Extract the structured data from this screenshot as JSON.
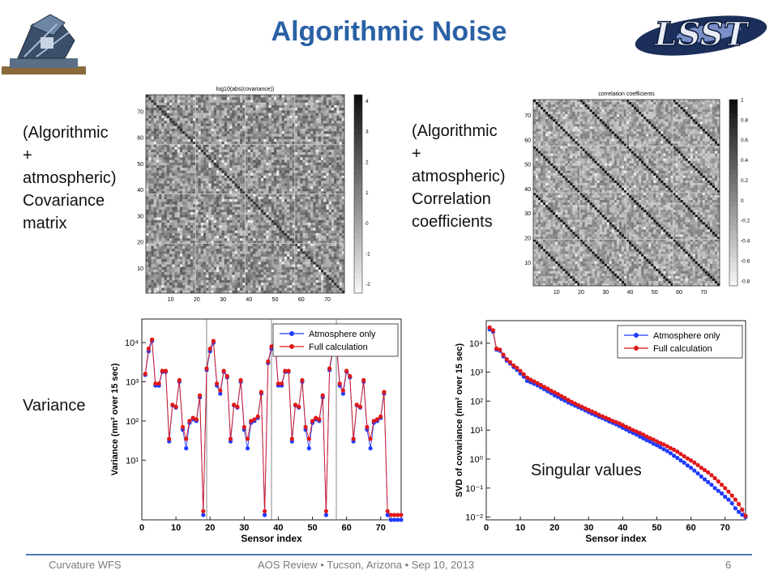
{
  "slide": {
    "title": "Algorithmic Noise",
    "logo_text": "LSST",
    "labels": {
      "covariance": "(Algorithmic\n+\natmospheric)\nCovariance\nmatrix",
      "correlation": "(Algorithmic\n+\natmospheric)\nCorrelation\ncoefficients",
      "variance": "Variance",
      "singular": "Singular values"
    },
    "footer": {
      "left": "Curvature WFS",
      "center": "AOS Review • Tucson, Arizona • Sep 10, 2013",
      "page": "6"
    }
  },
  "chart_data": [
    {
      "type": "heatmap",
      "title": "log10(abs(covariance))",
      "x_ticks": [
        "10",
        "20",
        "30",
        "40",
        "50",
        "60",
        "70"
      ],
      "y_ticks": [
        "10",
        "20",
        "30",
        "40",
        "50",
        "60",
        "70"
      ],
      "colorbar_ticks": [
        "4",
        "3",
        "2",
        "1",
        "0",
        "-1",
        "-2"
      ],
      "range": [
        1,
        76
      ],
      "colorbar_range": [
        -2.3,
        4.2
      ]
    },
    {
      "type": "heatmap",
      "title": "correlation coefficients",
      "x_ticks": [
        "10",
        "20",
        "30",
        "40",
        "50",
        "60",
        "70"
      ],
      "y_ticks": [
        "10",
        "20",
        "30",
        "40",
        "50",
        "60",
        "70"
      ],
      "colorbar_ticks": [
        "1",
        "0.8",
        "0.6",
        "0.4",
        "0.2",
        "0",
        "-0.2",
        "-0.4",
        "-0.6",
        "-0.8"
      ],
      "range": [
        1,
        76
      ],
      "colorbar_range": [
        -0.85,
        1
      ]
    },
    {
      "type": "line",
      "xlabel": "Sensor index",
      "ylabel": "Variance (nm² over 15 sec)",
      "x_ticks": [
        "0",
        "10",
        "20",
        "30",
        "40",
        "50",
        "60",
        "70"
      ],
      "y_ticks": [
        "10⁴",
        "10³",
        "10²",
        "10¹"
      ],
      "xlim": [
        0,
        76
      ],
      "ylim": [
        0.3,
        40000
      ],
      "log_y": true,
      "grid": false,
      "legend_position": "top-right",
      "series": [
        {
          "name": "Atmosphere only",
          "color": "#1f3cff",
          "x": [
            1,
            2,
            3,
            4,
            5,
            6,
            7,
            8,
            9,
            10,
            11,
            12,
            13,
            14,
            15,
            16,
            17,
            18,
            19,
            20,
            21,
            22,
            23,
            24,
            25,
            26,
            27,
            28,
            29,
            30,
            31,
            32,
            33,
            34,
            35,
            36,
            37,
            38,
            39,
            40,
            41,
            42,
            43,
            44,
            45,
            46,
            47,
            48,
            49,
            50,
            51,
            52,
            53,
            54,
            55,
            56,
            57,
            58,
            59,
            60,
            61,
            62,
            63,
            64,
            65,
            66,
            67,
            68,
            69,
            70,
            71,
            72,
            73,
            74,
            75,
            76
          ],
          "y": [
            1500,
            6000,
            11000,
            800,
            800,
            1800,
            1800,
            30,
            250,
            220,
            1000,
            60,
            20,
            90,
            110,
            100,
            400,
            0.4,
            2000,
            6000,
            10000,
            800,
            500,
            1800,
            1300,
            30,
            250,
            220,
            1000,
            60,
            20,
            90,
            100,
            120,
            500,
            0.4,
            3000,
            7000,
            10000,
            800,
            800,
            1800,
            1800,
            30,
            250,
            220,
            1000,
            60,
            20,
            90,
            110,
            100,
            400,
            0.4,
            2000,
            6000,
            10000,
            800,
            500,
            1800,
            1300,
            30,
            250,
            220,
            1000,
            60,
            20,
            90,
            100,
            120,
            500,
            0.4,
            0.3,
            0.3,
            0.3,
            0.3
          ]
        },
        {
          "name": "Full calculation",
          "color": "#e01818",
          "x": [
            1,
            2,
            3,
            4,
            5,
            6,
            7,
            8,
            9,
            10,
            11,
            12,
            13,
            14,
            15,
            16,
            17,
            18,
            19,
            20,
            21,
            22,
            23,
            24,
            25,
            26,
            27,
            28,
            29,
            30,
            31,
            32,
            33,
            34,
            35,
            36,
            37,
            38,
            39,
            40,
            41,
            42,
            43,
            44,
            45,
            46,
            47,
            48,
            49,
            50,
            51,
            52,
            53,
            54,
            55,
            56,
            57,
            58,
            59,
            60,
            61,
            62,
            63,
            64,
            65,
            66,
            67,
            68,
            69,
            70,
            71,
            72,
            73,
            74,
            75,
            76
          ],
          "y": [
            1600,
            7000,
            12000,
            900,
            900,
            1900,
            1900,
            35,
            260,
            230,
            1100,
            70,
            35,
            100,
            120,
            110,
            450,
            0.5,
            2200,
            7000,
            11000,
            900,
            600,
            1900,
            1400,
            35,
            260,
            230,
            1100,
            70,
            35,
            100,
            110,
            130,
            550,
            0.5,
            3300,
            8000,
            11000,
            900,
            900,
            1900,
            1900,
            35,
            260,
            230,
            1100,
            70,
            35,
            100,
            120,
            110,
            450,
            0.5,
            2200,
            7000,
            11000,
            900,
            600,
            1900,
            1400,
            35,
            260,
            230,
            1100,
            70,
            35,
            100,
            110,
            130,
            550,
            0.5,
            0.4,
            0.4,
            0.4,
            0.4
          ]
        }
      ]
    },
    {
      "type": "scatter",
      "xlabel": "Sensor index",
      "ylabel": "SVD of covariance (nm² over 15 sec)",
      "x_ticks": [
        "0",
        "10",
        "20",
        "30",
        "40",
        "50",
        "60",
        "70"
      ],
      "y_ticks": [
        "10⁴",
        "10³",
        "10²",
        "10¹",
        "10⁰",
        "10⁻¹",
        "10⁻²"
      ],
      "xlim": [
        0,
        76
      ],
      "ylim": [
        0.008,
        60000
      ],
      "log_y": true,
      "grid": false,
      "legend_position": "top-right",
      "series": [
        {
          "name": "Atmosphere only",
          "color": "#1f3cff",
          "x": [
            1,
            2,
            3,
            4,
            5,
            6,
            7,
            8,
            9,
            10,
            11,
            12,
            13,
            14,
            15,
            16,
            17,
            18,
            19,
            20,
            21,
            22,
            23,
            24,
            25,
            26,
            27,
            28,
            29,
            30,
            31,
            32,
            33,
            34,
            35,
            36,
            37,
            38,
            39,
            40,
            41,
            42,
            43,
            44,
            45,
            46,
            47,
            48,
            49,
            50,
            51,
            52,
            53,
            54,
            55,
            56,
            57,
            58,
            59,
            60,
            61,
            62,
            63,
            64,
            65,
            66,
            67,
            68,
            69,
            70,
            71,
            72,
            73,
            74,
            75,
            76
          ],
          "y": [
            30000,
            25000,
            6000,
            5500,
            3500,
            2500,
            2000,
            1500,
            1200,
            900,
            700,
            500,
            450,
            400,
            350,
            300,
            260,
            220,
            190,
            160,
            140,
            120,
            105,
            90,
            80,
            70,
            62,
            55,
            48,
            42,
            37,
            33,
            29,
            26,
            23,
            20,
            18,
            16,
            14,
            12,
            10.5,
            9,
            8,
            7,
            6,
            5.2,
            4.5,
            4,
            3.4,
            3,
            2.6,
            2.2,
            1.9,
            1.6,
            1.3,
            1.1,
            0.9,
            0.75,
            0.6,
            0.5,
            0.4,
            0.32,
            0.25,
            0.2,
            0.16,
            0.13,
            0.1,
            0.08,
            0.065,
            0.05,
            0.04,
            0.03,
            0.02,
            0.015,
            0.012,
            0.01
          ]
        },
        {
          "name": "Full calculation",
          "color": "#e01818",
          "x": [
            1,
            2,
            3,
            4,
            5,
            6,
            7,
            8,
            9,
            10,
            11,
            12,
            13,
            14,
            15,
            16,
            17,
            18,
            19,
            20,
            21,
            22,
            23,
            24,
            25,
            26,
            27,
            28,
            29,
            30,
            31,
            32,
            33,
            34,
            35,
            36,
            37,
            38,
            39,
            40,
            41,
            42,
            43,
            44,
            45,
            46,
            47,
            48,
            49,
            50,
            51,
            52,
            53,
            54,
            55,
            56,
            57,
            58,
            59,
            60,
            61,
            62,
            63,
            64,
            65,
            66,
            67,
            68,
            69,
            70,
            71,
            72,
            73,
            74,
            75,
            76
          ],
          "y": [
            35000,
            28000,
            6500,
            6000,
            4000,
            2800,
            2200,
            1700,
            1400,
            1100,
            850,
            650,
            550,
            480,
            420,
            360,
            310,
            270,
            230,
            200,
            175,
            150,
            130,
            110,
            95,
            83,
            73,
            64,
            56,
            50,
            44,
            39,
            34,
            30,
            27,
            24,
            21,
            19,
            17,
            15,
            13,
            11.5,
            10,
            9,
            8,
            7,
            6,
            5.3,
            4.7,
            4.1,
            3.6,
            3.2,
            2.8,
            2.4,
            2.1,
            1.8,
            1.5,
            1.25,
            1.05,
            0.9,
            0.75,
            0.62,
            0.5,
            0.42,
            0.35,
            0.28,
            0.22,
            0.17,
            0.13,
            0.1,
            0.075,
            0.055,
            0.04,
            0.028,
            0.018,
            0.011
          ]
        }
      ]
    }
  ]
}
